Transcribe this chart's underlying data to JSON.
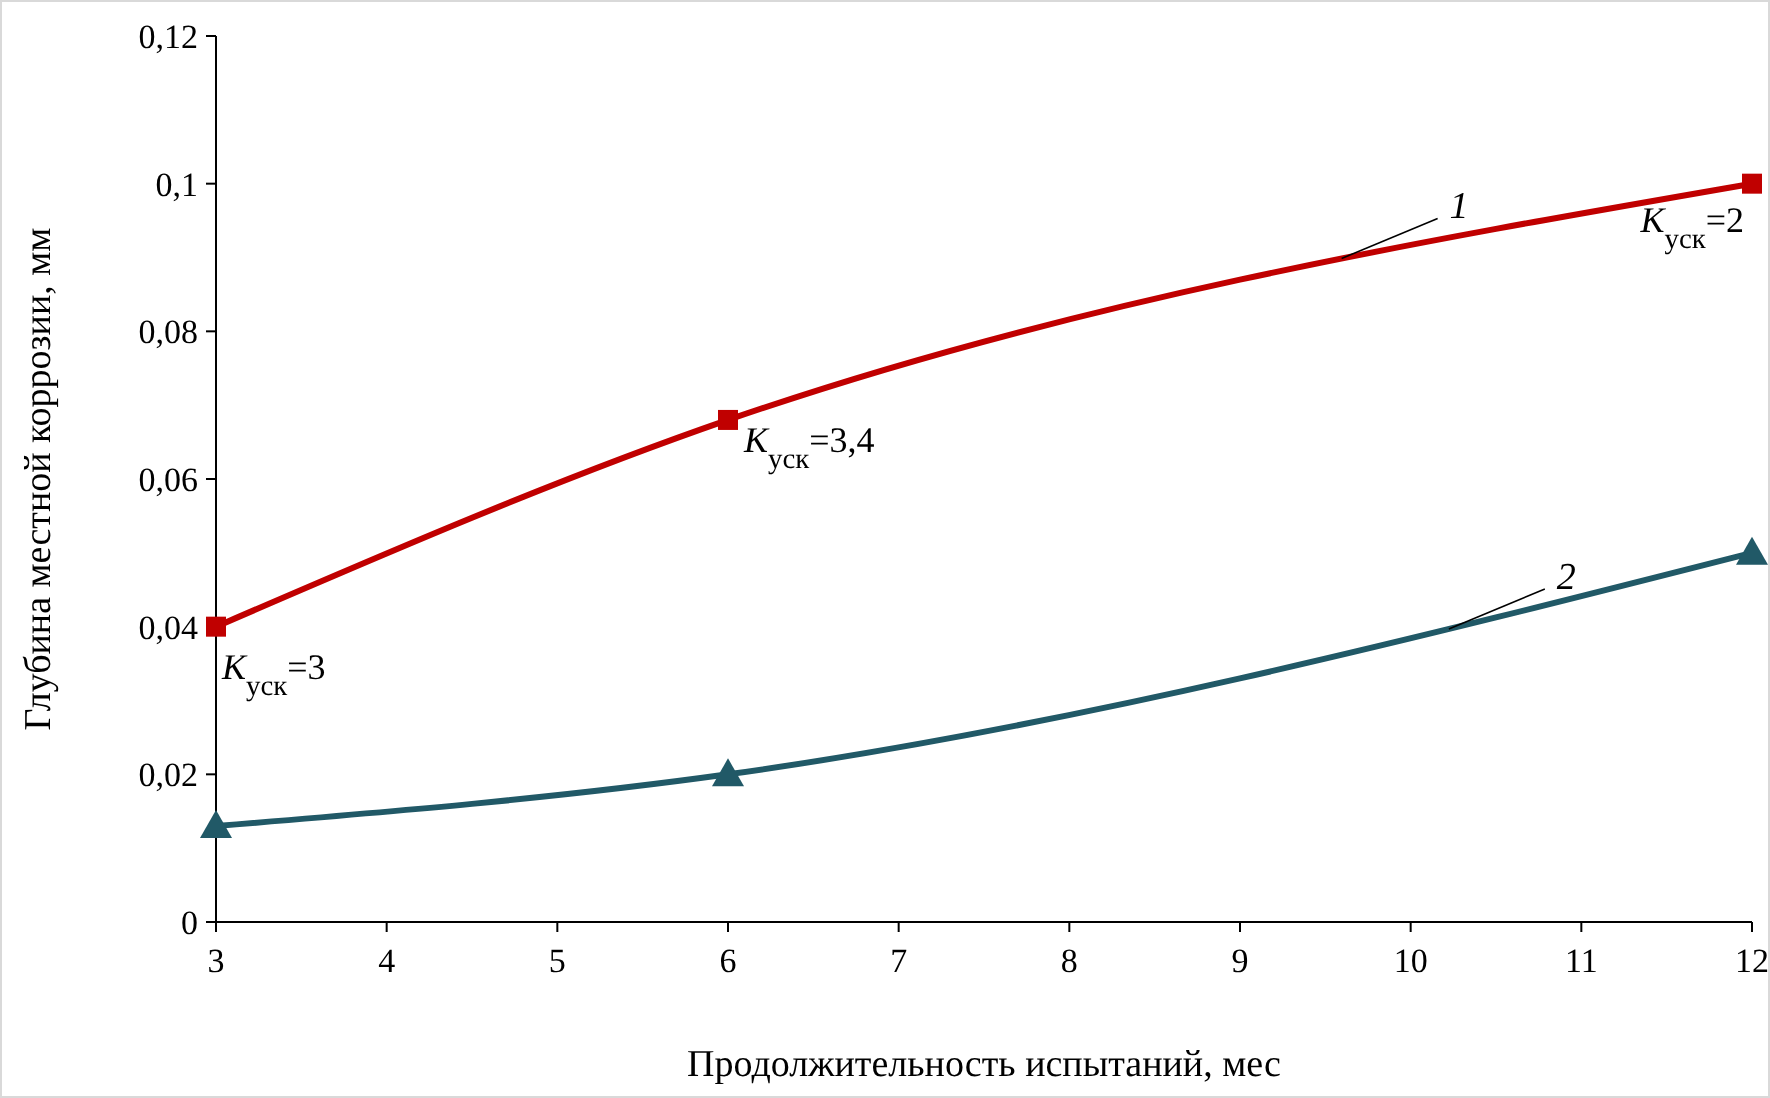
{
  "chart_data": {
    "type": "line",
    "xlabel": "Продолжительность испытаний, мес",
    "ylabel": "Глубина местной коррозии, мм",
    "xlim": [
      3,
      12
    ],
    "xticks": [
      3,
      4,
      5,
      6,
      7,
      8,
      9,
      10,
      11,
      12
    ],
    "ylim": [
      0,
      0.12
    ],
    "yticks": [
      {
        "value": 0,
        "label": "0"
      },
      {
        "value": 0.02,
        "label": "0,02"
      },
      {
        "value": 0.04,
        "label": "0,04"
      },
      {
        "value": 0.06,
        "label": "0,06"
      },
      {
        "value": 0.08,
        "label": "0,08"
      },
      {
        "value": 0.1,
        "label": "0,1"
      },
      {
        "value": 0.12,
        "label": "0,12"
      }
    ],
    "x": [
      3,
      6,
      12
    ],
    "series": [
      {
        "name": "1",
        "color": "#c00000",
        "marker": "square",
        "values": [
          0.04,
          0.068,
          0.1
        ]
      },
      {
        "name": "2",
        "color": "#215967",
        "marker": "triangle",
        "values": [
          0.013,
          0.02,
          0.05
        ]
      }
    ],
    "annotations": [
      {
        "text": "K$_{уск}$=3",
        "x": 3,
        "y": 0.04
      },
      {
        "text": "K$_{уск}$=3,4",
        "x": 6,
        "y": 0.068
      },
      {
        "text": "K$_{уск}$=2",
        "x": 12,
        "y": 0.1
      }
    ],
    "grid": false,
    "line_style": "solid"
  }
}
